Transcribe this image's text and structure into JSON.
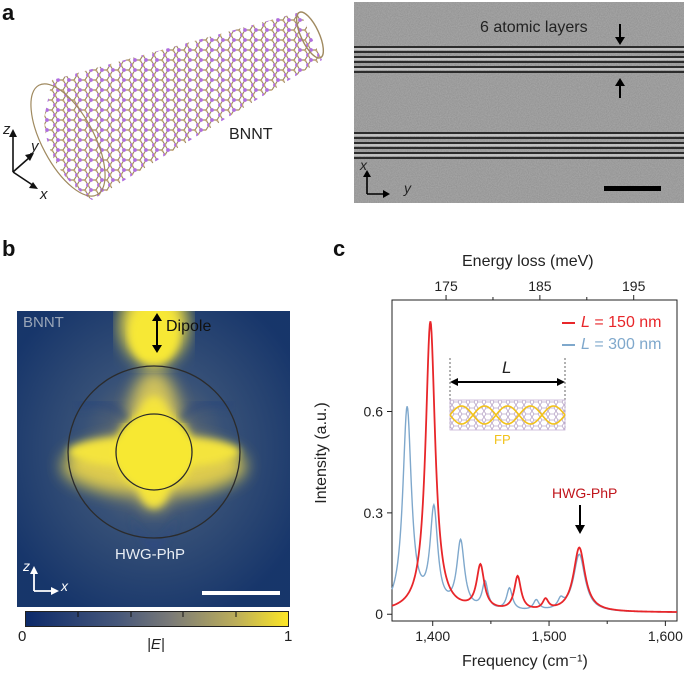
{
  "panel_a": {
    "letter": "a",
    "bnnt_label": "BNNT",
    "axes_left": {
      "z": "z",
      "y": "y",
      "x": "x"
    },
    "tem_annotation": "6 atomic layers",
    "axes_right": {
      "x": "x",
      "y": "y"
    }
  },
  "panel_b": {
    "letter": "b",
    "bnnt_label": "BNNT",
    "dipole_label": "Dipole",
    "hwg_label": "HWG-PhP",
    "axes": {
      "z": "z",
      "x": "x"
    },
    "colorbar": {
      "min": "0",
      "max": "1",
      "label": "|E|"
    }
  },
  "panel_c": {
    "letter": "c",
    "top_axis_title": "Energy loss (meV)",
    "top_ticks": [
      "175",
      "185",
      "195"
    ],
    "bottom_axis_title": "Frequency (cm⁻¹)",
    "bottom_ticks": [
      "1,400",
      "1,500",
      "1,600"
    ],
    "y_axis_title": "Intensity (a.u.)",
    "y_ticks": [
      "0",
      "0.3",
      "0.6"
    ],
    "legend": [
      {
        "var": "L",
        "text": " = 150 nm",
        "color": "#e8262a"
      },
      {
        "var": "L",
        "text": " = 300 nm",
        "color": "#7fa8cc"
      }
    ],
    "inset_length_label": "L",
    "inset_fp_label": "FP",
    "peak_annotation": "HWG-PhP",
    "colors": {
      "red": "#e8262a",
      "blue": "#7fa8cc",
      "fp": "#f2c21b"
    }
  },
  "chart_data": {
    "type": "line",
    "title": "",
    "xlabel": "Frequency (cm⁻¹)",
    "ylabel": "Intensity (a.u.)",
    "top_xlabel": "Energy loss (meV)",
    "xlim": [
      1365,
      1610
    ],
    "ylim": [
      -0.02,
      0.93
    ],
    "series": [
      {
        "name": "L = 150 nm",
        "color": "#e8262a",
        "peaks": [
          [
            1398,
            0.86,
            5
          ],
          [
            1441,
            0.13,
            4
          ],
          [
            1473,
            0.1,
            3.5
          ],
          [
            1497,
            0.03,
            3
          ],
          [
            1526,
            0.19,
            6
          ]
        ],
        "baseline": 0.005
      },
      {
        "name": "L = 300 nm",
        "color": "#7fa8cc",
        "peaks": [
          [
            1378,
            0.6,
            4.5
          ],
          [
            1401,
            0.29,
            4
          ],
          [
            1424,
            0.2,
            4
          ],
          [
            1445,
            0.08,
            3
          ],
          [
            1466,
            0.065,
            3
          ],
          [
            1489,
            0.03,
            3
          ],
          [
            1510,
            0.025,
            3
          ],
          [
            1526,
            0.17,
            6
          ]
        ],
        "baseline": 0.005
      }
    ]
  }
}
